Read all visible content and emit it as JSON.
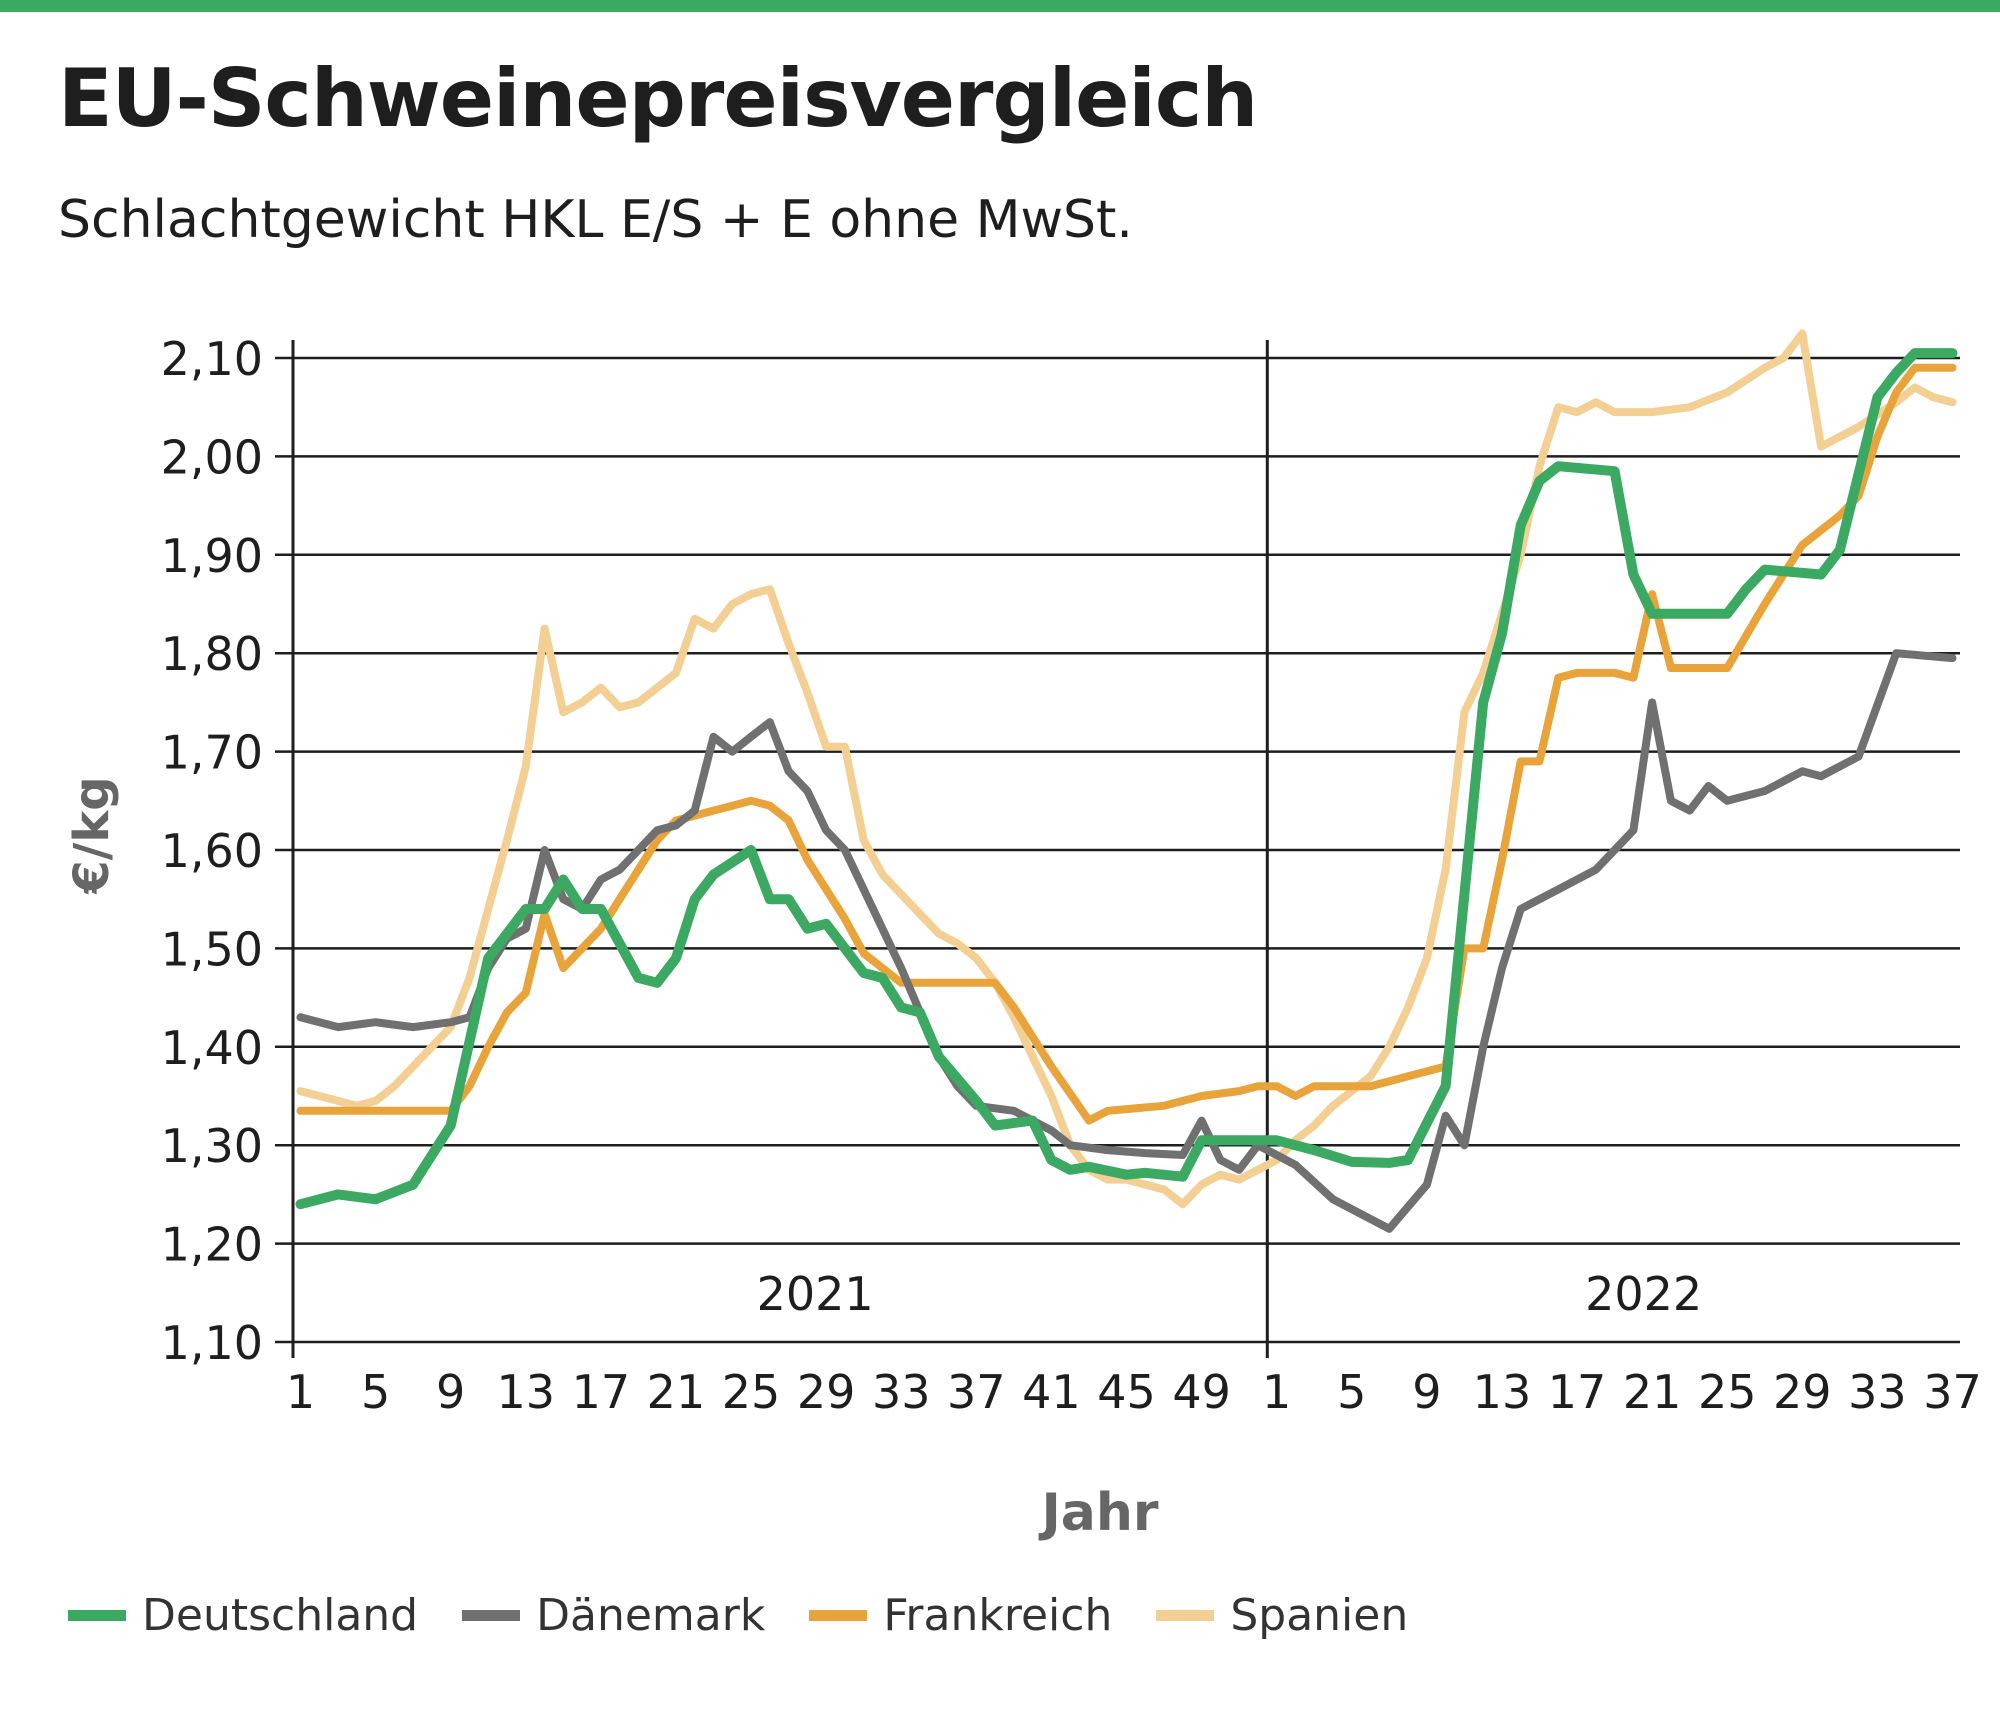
{
  "title": "EU-Schweinepreisvergleich",
  "subtitle": "Schlachtgewicht HKL E/S + E ohne MwSt.",
  "colors": {
    "Deutschland": "#3ca962",
    "Dänemark": "#707070",
    "Frankreich": "#e8a43a",
    "Spanien": "#f3cf93",
    "accent_bar": "#3ca962"
  },
  "chart_data": {
    "type": "line",
    "ylabel": "€/kg",
    "xlabel": "Jahr",
    "ylim": [
      1.1,
      2.1
    ],
    "y_ticks": [
      "1,10",
      "1,20",
      "1,30",
      "1,40",
      "1,50",
      "1,60",
      "1,70",
      "1,80",
      "1,90",
      "2,00",
      "2,10"
    ],
    "x_tick_labels": [
      "1",
      "5",
      "9",
      "13",
      "17",
      "21",
      "25",
      "29",
      "33",
      "37",
      "41",
      "45",
      "49",
      "1",
      "5",
      "9",
      "13",
      "17",
      "21",
      "25",
      "29",
      "33",
      "37"
    ],
    "year_labels": [
      "2021",
      "2022"
    ],
    "grid": true,
    "legend_position": "bottom",
    "x_description": "calendar week; weeks 1–52 of 2021 followed by weeks 1–37 of 2022",
    "series": [
      {
        "name": "Deutschland",
        "points": [
          [
            "2021-KW1",
            1.24
          ],
          [
            "2021-KW3",
            1.25
          ],
          [
            "2021-KW5",
            1.245
          ],
          [
            "2021-KW7",
            1.26
          ],
          [
            "2021-KW9",
            1.32
          ],
          [
            "2021-KW11",
            1.49
          ],
          [
            "2021-KW13",
            1.54
          ],
          [
            "2021-KW14",
            1.54
          ],
          [
            "2021-KW15",
            1.57
          ],
          [
            "2021-KW16",
            1.54
          ],
          [
            "2021-KW17",
            1.54
          ],
          [
            "2021-KW19",
            1.47
          ],
          [
            "2021-KW20",
            1.465
          ],
          [
            "2021-KW21",
            1.49
          ],
          [
            "2021-KW22",
            1.55
          ],
          [
            "2021-KW23",
            1.575
          ],
          [
            "2021-KW25",
            1.6
          ],
          [
            "2021-KW26",
            1.55
          ],
          [
            "2021-KW27",
            1.55
          ],
          [
            "2021-KW28",
            1.52
          ],
          [
            "2021-KW29",
            1.525
          ],
          [
            "2021-KW31",
            1.475
          ],
          [
            "2021-KW32",
            1.47
          ],
          [
            "2021-KW33",
            1.44
          ],
          [
            "2021-KW34",
            1.435
          ],
          [
            "2021-KW35",
            1.39
          ],
          [
            "2021-KW37",
            1.345
          ],
          [
            "2021-KW38",
            1.32
          ],
          [
            "2021-KW40",
            1.325
          ],
          [
            "2021-KW41",
            1.285
          ],
          [
            "2021-KW42",
            1.275
          ],
          [
            "2021-KW43",
            1.278
          ],
          [
            "2021-KW45",
            1.27
          ],
          [
            "2021-KW46",
            1.272
          ],
          [
            "2021-KW48",
            1.268
          ],
          [
            "2021-KW49",
            1.305
          ],
          [
            "2021-KW50",
            1.305
          ],
          [
            "2021-KW52",
            1.305
          ],
          [
            "2022-KW1",
            1.305
          ],
          [
            "2022-KW3",
            1.295
          ],
          [
            "2022-KW5",
            1.283
          ],
          [
            "2022-KW7",
            1.282
          ],
          [
            "2022-KW8",
            1.285
          ],
          [
            "2022-KW10",
            1.36
          ],
          [
            "2022-KW12",
            1.75
          ],
          [
            "2022-KW13",
            1.82
          ],
          [
            "2022-KW14",
            1.93
          ],
          [
            "2022-KW15",
            1.975
          ],
          [
            "2022-KW16",
            1.99
          ],
          [
            "2022-KW19",
            1.985
          ],
          [
            "2022-KW20",
            1.88
          ],
          [
            "2022-KW21",
            1.84
          ],
          [
            "2022-KW23",
            1.84
          ],
          [
            "2022-KW25",
            1.84
          ],
          [
            "2022-KW26",
            1.865
          ],
          [
            "2022-KW27",
            1.885
          ],
          [
            "2022-KW30",
            1.88
          ],
          [
            "2022-KW31",
            1.905
          ],
          [
            "2022-KW33",
            2.06
          ],
          [
            "2022-KW34",
            2.085
          ],
          [
            "2022-KW35",
            2.105
          ],
          [
            "2022-KW37",
            2.105
          ]
        ]
      },
      {
        "name": "Dänemark",
        "points": [
          [
            "2021-KW1",
            1.43
          ],
          [
            "2021-KW3",
            1.42
          ],
          [
            "2021-KW5",
            1.425
          ],
          [
            "2021-KW7",
            1.42
          ],
          [
            "2021-KW9",
            1.425
          ],
          [
            "2021-KW10",
            1.43
          ],
          [
            "2021-KW11",
            1.48
          ],
          [
            "2021-KW12",
            1.51
          ],
          [
            "2021-KW13",
            1.52
          ],
          [
            "2021-KW14",
            1.6
          ],
          [
            "2021-KW15",
            1.55
          ],
          [
            "2021-KW16",
            1.54
          ],
          [
            "2021-KW17",
            1.57
          ],
          [
            "2021-KW18",
            1.58
          ],
          [
            "2021-KW19",
            1.6
          ],
          [
            "2021-KW20",
            1.62
          ],
          [
            "2021-KW21",
            1.625
          ],
          [
            "2021-KW22",
            1.64
          ],
          [
            "2021-KW23",
            1.715
          ],
          [
            "2021-KW24",
            1.7
          ],
          [
            "2021-KW25",
            1.715
          ],
          [
            "2021-KW26",
            1.73
          ],
          [
            "2021-KW27",
            1.68
          ],
          [
            "2021-KW28",
            1.66
          ],
          [
            "2021-KW29",
            1.62
          ],
          [
            "2021-KW30",
            1.6
          ],
          [
            "2021-KW31",
            1.56
          ],
          [
            "2021-KW33",
            1.48
          ],
          [
            "2021-KW35",
            1.39
          ],
          [
            "2021-KW36",
            1.36
          ],
          [
            "2021-KW37",
            1.34
          ],
          [
            "2021-KW39",
            1.335
          ],
          [
            "2021-KW41",
            1.315
          ],
          [
            "2021-KW42",
            1.3
          ],
          [
            "2021-KW44",
            1.295
          ],
          [
            "2021-KW46",
            1.292
          ],
          [
            "2021-KW48",
            1.29
          ],
          [
            "2021-KW49",
            1.325
          ],
          [
            "2021-KW50",
            1.285
          ],
          [
            "2021-KW51",
            1.275
          ],
          [
            "2021-KW52",
            1.3
          ],
          [
            "2022-KW2",
            1.28
          ],
          [
            "2022-KW4",
            1.245
          ],
          [
            "2022-KW6",
            1.225
          ],
          [
            "2022-KW7",
            1.215
          ],
          [
            "2022-KW9",
            1.26
          ],
          [
            "2022-KW10",
            1.33
          ],
          [
            "2022-KW11",
            1.3
          ],
          [
            "2022-KW12",
            1.4
          ],
          [
            "2022-KW13",
            1.48
          ],
          [
            "2022-KW14",
            1.54
          ],
          [
            "2022-KW16",
            1.56
          ],
          [
            "2022-KW18",
            1.58
          ],
          [
            "2022-KW20",
            1.62
          ],
          [
            "2022-KW21",
            1.75
          ],
          [
            "2022-KW22",
            1.65
          ],
          [
            "2022-KW23",
            1.64
          ],
          [
            "2022-KW24",
            1.665
          ],
          [
            "2022-KW25",
            1.65
          ],
          [
            "2022-KW27",
            1.66
          ],
          [
            "2022-KW29",
            1.68
          ],
          [
            "2022-KW30",
            1.675
          ],
          [
            "2022-KW32",
            1.695
          ],
          [
            "2022-KW34",
            1.8
          ],
          [
            "2022-KW37",
            1.795
          ]
        ]
      },
      {
        "name": "Frankreich",
        "points": [
          [
            "2021-KW1",
            1.335
          ],
          [
            "2021-KW9",
            1.335
          ],
          [
            "2021-KW10",
            1.36
          ],
          [
            "2021-KW11",
            1.4
          ],
          [
            "2021-KW12",
            1.435
          ],
          [
            "2021-KW13",
            1.455
          ],
          [
            "2021-KW14",
            1.535
          ],
          [
            "2021-KW15",
            1.48
          ],
          [
            "2021-KW16",
            1.5
          ],
          [
            "2021-KW17",
            1.52
          ],
          [
            "2021-KW18",
            1.55
          ],
          [
            "2021-KW19",
            1.58
          ],
          [
            "2021-KW20",
            1.61
          ],
          [
            "2021-KW21",
            1.63
          ],
          [
            "2021-KW22",
            1.635
          ],
          [
            "2021-KW23",
            1.64
          ],
          [
            "2021-KW24",
            1.645
          ],
          [
            "2021-KW25",
            1.65
          ],
          [
            "2021-KW26",
            1.645
          ],
          [
            "2021-KW27",
            1.63
          ],
          [
            "2021-KW28",
            1.59
          ],
          [
            "2021-KW30",
            1.53
          ],
          [
            "2021-KW31",
            1.495
          ],
          [
            "2021-KW32",
            1.48
          ],
          [
            "2021-KW33",
            1.465
          ],
          [
            "2021-KW38",
            1.465
          ],
          [
            "2021-KW39",
            1.44
          ],
          [
            "2021-KW41",
            1.38
          ],
          [
            "2021-KW43",
            1.325
          ],
          [
            "2021-KW44",
            1.335
          ],
          [
            "2021-KW47",
            1.34
          ],
          [
            "2021-KW48",
            1.345
          ],
          [
            "2021-KW49",
            1.35
          ],
          [
            "2021-KW51",
            1.355
          ],
          [
            "2021-KW52",
            1.36
          ],
          [
            "2022-KW1",
            1.36
          ],
          [
            "2022-KW2",
            1.35
          ],
          [
            "2022-KW3",
            1.36
          ],
          [
            "2022-KW6",
            1.36
          ],
          [
            "2022-KW8",
            1.37
          ],
          [
            "2022-KW10",
            1.38
          ],
          [
            "2022-KW11",
            1.5
          ],
          [
            "2022-KW12",
            1.5
          ],
          [
            "2022-KW13",
            1.59
          ],
          [
            "2022-KW14",
            1.69
          ],
          [
            "2022-KW15",
            1.69
          ],
          [
            "2022-KW16",
            1.775
          ],
          [
            "2022-KW17",
            1.78
          ],
          [
            "2022-KW19",
            1.78
          ],
          [
            "2022-KW20",
            1.775
          ],
          [
            "2022-KW21",
            1.86
          ],
          [
            "2022-KW22",
            1.785
          ],
          [
            "2022-KW25",
            1.785
          ],
          [
            "2022-KW27",
            1.85
          ],
          [
            "2022-KW29",
            1.91
          ],
          [
            "2022-KW31",
            1.94
          ],
          [
            "2022-KW32",
            1.96
          ],
          [
            "2022-KW33",
            2.02
          ],
          [
            "2022-KW34",
            2.065
          ],
          [
            "2022-KW35",
            2.09
          ],
          [
            "2022-KW37",
            2.09
          ]
        ]
      },
      {
        "name": "Spanien",
        "points": [
          [
            "2021-KW1",
            1.355
          ],
          [
            "2021-KW2",
            1.35
          ],
          [
            "2021-KW3",
            1.345
          ],
          [
            "2021-KW4",
            1.34
          ],
          [
            "2021-KW5",
            1.345
          ],
          [
            "2021-KW6",
            1.36
          ],
          [
            "2021-KW7",
            1.38
          ],
          [
            "2021-KW8",
            1.4
          ],
          [
            "2021-KW9",
            1.42
          ],
          [
            "2021-KW10",
            1.47
          ],
          [
            "2021-KW11",
            1.54
          ],
          [
            "2021-KW12",
            1.61
          ],
          [
            "2021-KW13",
            1.685
          ],
          [
            "2021-KW14",
            1.825
          ],
          [
            "2021-KW15",
            1.74
          ],
          [
            "2021-KW16",
            1.75
          ],
          [
            "2021-KW17",
            1.765
          ],
          [
            "2021-KW18",
            1.745
          ],
          [
            "2021-KW19",
            1.75
          ],
          [
            "2021-KW20",
            1.765
          ],
          [
            "2021-KW21",
            1.78
          ],
          [
            "2021-KW22",
            1.835
          ],
          [
            "2021-KW23",
            1.825
          ],
          [
            "2021-KW24",
            1.85
          ],
          [
            "2021-KW25",
            1.86
          ],
          [
            "2021-KW26",
            1.865
          ],
          [
            "2021-KW27",
            1.81
          ],
          [
            "2021-KW28",
            1.76
          ],
          [
            "2021-KW29",
            1.705
          ],
          [
            "2021-KW30",
            1.705
          ],
          [
            "2021-KW31",
            1.61
          ],
          [
            "2021-KW32",
            1.575
          ],
          [
            "2021-KW33",
            1.555
          ],
          [
            "2021-KW34",
            1.535
          ],
          [
            "2021-KW35",
            1.515
          ],
          [
            "2021-KW36",
            1.505
          ],
          [
            "2021-KW37",
            1.49
          ],
          [
            "2021-KW38",
            1.465
          ],
          [
            "2021-KW39",
            1.43
          ],
          [
            "2021-KW40",
            1.39
          ],
          [
            "2021-KW41",
            1.35
          ],
          [
            "2021-KW42",
            1.3
          ],
          [
            "2021-KW43",
            1.275
          ],
          [
            "2021-KW44",
            1.265
          ],
          [
            "2021-KW45",
            1.265
          ],
          [
            "2021-KW46",
            1.26
          ],
          [
            "2021-KW47",
            1.255
          ],
          [
            "2021-KW48",
            1.24
          ],
          [
            "2021-KW49",
            1.26
          ],
          [
            "2021-KW50",
            1.27
          ],
          [
            "2021-KW51",
            1.265
          ],
          [
            "2021-KW52",
            1.275
          ],
          [
            "2022-KW1",
            1.285
          ],
          [
            "2022-KW2",
            1.305
          ],
          [
            "2022-KW3",
            1.32
          ],
          [
            "2022-KW4",
            1.34
          ],
          [
            "2022-KW5",
            1.355
          ],
          [
            "2022-KW6",
            1.37
          ],
          [
            "2022-KW7",
            1.4
          ],
          [
            "2022-KW8",
            1.44
          ],
          [
            "2022-KW9",
            1.49
          ],
          [
            "2022-KW10",
            1.58
          ],
          [
            "2022-KW11",
            1.74
          ],
          [
            "2022-KW12",
            1.78
          ],
          [
            "2022-KW13",
            1.84
          ],
          [
            "2022-KW14",
            1.9
          ],
          [
            "2022-KW15",
            1.99
          ],
          [
            "2022-KW16",
            2.05
          ],
          [
            "2022-KW17",
            2.045
          ],
          [
            "2022-KW18",
            2.055
          ],
          [
            "2022-KW19",
            2.045
          ],
          [
            "2022-KW21",
            2.045
          ],
          [
            "2022-KW23",
            2.05
          ],
          [
            "2022-KW25",
            2.065
          ],
          [
            "2022-KW27",
            2.09
          ],
          [
            "2022-KW28",
            2.1
          ],
          [
            "2022-KW29",
            2.125
          ],
          [
            "2022-KW30",
            2.01
          ],
          [
            "2022-KW31",
            2.02
          ],
          [
            "2022-KW32",
            2.03
          ],
          [
            "2022-KW34",
            2.055
          ],
          [
            "2022-KW35",
            2.07
          ],
          [
            "2022-KW36",
            2.06
          ],
          [
            "2022-KW37",
            2.055
          ]
        ]
      }
    ]
  }
}
